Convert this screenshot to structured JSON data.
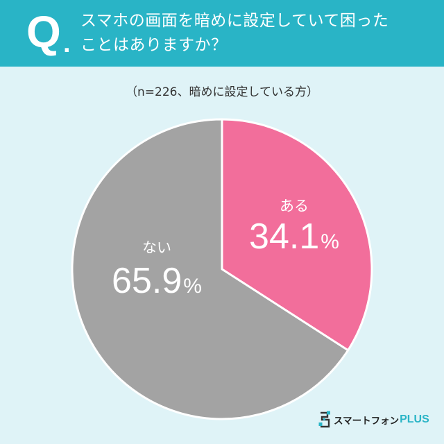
{
  "header": {
    "q_letter": "Q",
    "q_dot": ".",
    "lines": [
      "スマホの画面を暗めに設定していて困った",
      "ことはありますか？"
    ]
  },
  "chart_data": {
    "type": "pie",
    "subtitle": "（n=226、暗めに設定している方）",
    "categories": [
      "ある",
      "ない"
    ],
    "values": [
      34.1,
      65.9
    ],
    "unit": "%",
    "colors": [
      "#f26e9b",
      "#a3a3a3"
    ]
  },
  "logo": {
    "name": "スマートフォン",
    "suffix": "PLUS",
    "icon": "smartphone-plus-logo-icon",
    "accent": "#29b4c6"
  },
  "colors": {
    "header_bg": "#29b4c6",
    "page_bg": "#dff3f7",
    "divider": "#ffffff"
  }
}
